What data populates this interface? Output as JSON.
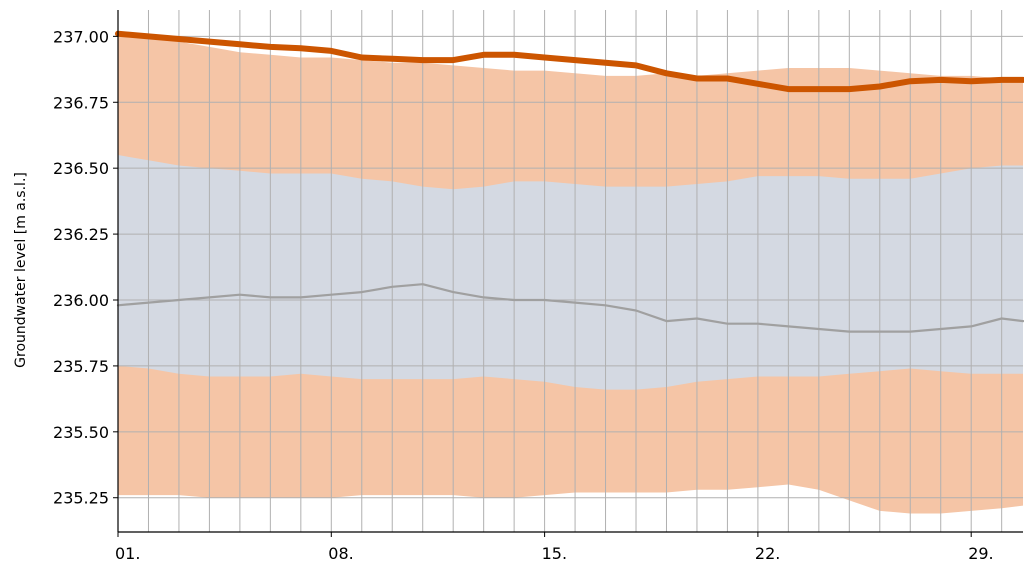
{
  "chart_data": {
    "type": "area",
    "title": "",
    "xlabel": "",
    "ylabel": "Groundwater level [m a.s.l.]",
    "ylim": [
      235.12,
      237.1
    ],
    "xlim": [
      1,
      30.7
    ],
    "grid": true,
    "legend": "none",
    "x_tick_values": [
      1,
      8,
      15,
      22,
      29
    ],
    "x_tick_labels": [
      "01.",
      "08.",
      "15.",
      "22.",
      "29."
    ],
    "y_tick_values": [
      235.25,
      235.5,
      235.75,
      236.0,
      236.25,
      236.5,
      236.75,
      237.0
    ],
    "y_tick_labels": [
      "235.25",
      "235.50",
      "235.75",
      "236.00",
      "236.25",
      "236.50",
      "236.75",
      "237.00"
    ],
    "x": [
      1,
      2,
      3,
      4,
      5,
      6,
      7,
      8,
      9,
      10,
      11,
      12,
      13,
      14,
      15,
      16,
      17,
      18,
      19,
      20,
      21,
      22,
      23,
      24,
      25,
      26,
      27,
      28,
      29,
      30,
      30.7
    ],
    "series": [
      {
        "role": "outer-band",
        "color": "#f5c5a6",
        "upper": [
          237.01,
          237.0,
          236.98,
          236.96,
          236.94,
          236.93,
          236.92,
          236.92,
          236.91,
          236.9,
          236.9,
          236.89,
          236.88,
          236.87,
          236.87,
          236.86,
          236.85,
          236.85,
          236.86,
          236.85,
          236.86,
          236.87,
          236.88,
          236.88,
          236.88,
          236.87,
          236.86,
          236.85,
          236.85,
          236.84,
          236.84
        ],
        "lower": [
          235.26,
          235.26,
          235.26,
          235.25,
          235.25,
          235.25,
          235.25,
          235.25,
          235.26,
          235.26,
          235.26,
          235.26,
          235.25,
          235.25,
          235.26,
          235.27,
          235.27,
          235.27,
          235.27,
          235.28,
          235.28,
          235.29,
          235.3,
          235.28,
          235.24,
          235.2,
          235.19,
          235.19,
          235.2,
          235.21,
          235.22
        ]
      },
      {
        "role": "inner-band",
        "color": "#d4d9e2",
        "upper": [
          236.55,
          236.53,
          236.51,
          236.5,
          236.49,
          236.48,
          236.48,
          236.48,
          236.46,
          236.45,
          236.43,
          236.42,
          236.43,
          236.45,
          236.45,
          236.44,
          236.43,
          236.43,
          236.43,
          236.44,
          236.45,
          236.47,
          236.47,
          236.47,
          236.46,
          236.46,
          236.46,
          236.48,
          236.5,
          236.51,
          236.51
        ],
        "lower": [
          235.75,
          235.74,
          235.72,
          235.71,
          235.71,
          235.71,
          235.72,
          235.71,
          235.7,
          235.7,
          235.7,
          235.7,
          235.71,
          235.7,
          235.69,
          235.67,
          235.66,
          235.66,
          235.67,
          235.69,
          235.7,
          235.71,
          235.71,
          235.71,
          235.72,
          235.73,
          235.74,
          235.73,
          235.72,
          235.72,
          235.72
        ]
      },
      {
        "role": "median",
        "color": "#a0a0a0",
        "values": [
          235.98,
          235.99,
          236.0,
          236.01,
          236.02,
          236.01,
          236.01,
          236.02,
          236.03,
          236.05,
          236.06,
          236.03,
          236.01,
          236.0,
          236.0,
          235.99,
          235.98,
          235.96,
          235.92,
          235.93,
          235.91,
          235.91,
          235.9,
          235.89,
          235.88,
          235.88,
          235.88,
          235.89,
          235.9,
          235.93,
          235.92
        ]
      },
      {
        "role": "current",
        "color": "#cc5500",
        "values": [
          237.01,
          237.0,
          236.99,
          236.98,
          236.97,
          236.96,
          236.955,
          236.945,
          236.92,
          236.915,
          236.91,
          236.91,
          236.93,
          236.93,
          236.92,
          236.91,
          236.9,
          236.89,
          236.86,
          236.84,
          236.84,
          236.82,
          236.8,
          236.8,
          236.8,
          236.81,
          236.83,
          236.835,
          236.83,
          236.835,
          236.835
        ]
      }
    ]
  }
}
